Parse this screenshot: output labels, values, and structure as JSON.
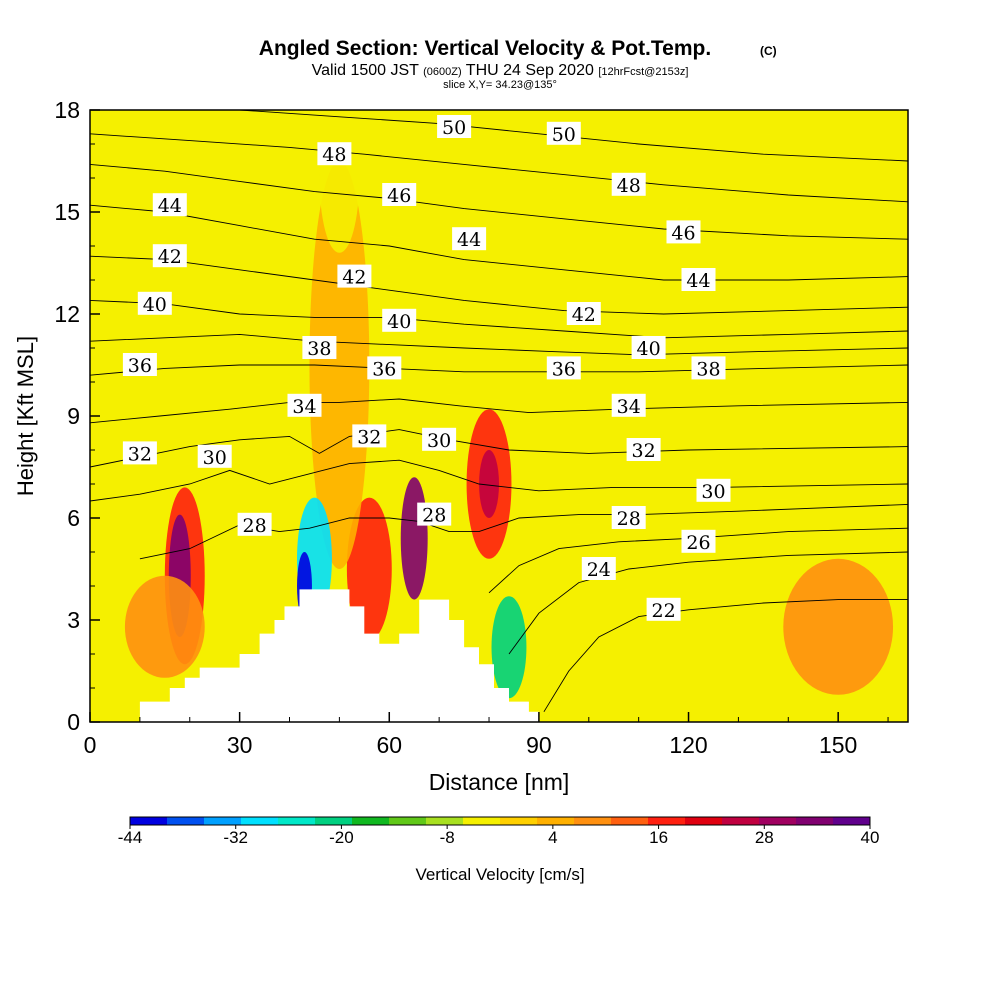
{
  "header": {
    "title": "Angled Section: Vertical Velocity & Pot.Temp.",
    "title_unit": "(C)",
    "subtitle_prefix": "Valid 1500 JST",
    "subtitle_utc": "(0600Z)",
    "subtitle_date": "THU 24 Sep 2020",
    "subtitle_run": "[12hrFcst@2153z]",
    "slice": "slice X,Y= 34.23@135°"
  },
  "colors": {
    "background_field": "#f5f000",
    "terrain": "#ffffff",
    "contour": "#000000"
  },
  "chart_data": {
    "type": "heatmap",
    "xlabel": "Distance [nm]",
    "ylabel": "Height [Kft MSL]",
    "xlim": [
      0,
      164
    ],
    "ylim": [
      0,
      18
    ],
    "x_ticks": [
      0,
      30,
      60,
      90,
      120,
      150
    ],
    "y_ticks": [
      0,
      3,
      6,
      9,
      12,
      15,
      18
    ],
    "grid": false,
    "colorbar": {
      "label": "Vertical Velocity [cm/s]",
      "tick_labels": [
        "-44",
        "-32",
        "-20",
        "-8",
        "4",
        "16",
        "28",
        "40"
      ],
      "colors": [
        "#0000e0",
        "#0050f0",
        "#00a0ff",
        "#00e0ff",
        "#00e8c8",
        "#00d080",
        "#10b820",
        "#60c818",
        "#a8e020",
        "#f5f000",
        "#ffd000",
        "#ffb000",
        "#ff9010",
        "#ff6010",
        "#ff2010",
        "#e00010",
        "#c00040",
        "#a00060",
        "#800070",
        "#60008c"
      ]
    },
    "theta_contour_labels": [
      {
        "text": "50",
        "x": 73,
        "z": 17.5
      },
      {
        "text": "50",
        "x": 95,
        "z": 17.3
      },
      {
        "text": "48",
        "x": 49,
        "z": 16.7
      },
      {
        "text": "48",
        "x": 108,
        "z": 15.8
      },
      {
        "text": "46",
        "x": 62,
        "z": 15.5
      },
      {
        "text": "46",
        "x": 119,
        "z": 14.4
      },
      {
        "text": "44",
        "x": 16,
        "z": 15.2
      },
      {
        "text": "44",
        "x": 76,
        "z": 14.2
      },
      {
        "text": "44",
        "x": 122,
        "z": 13.0
      },
      {
        "text": "42",
        "x": 16,
        "z": 13.7
      },
      {
        "text": "42",
        "x": 53,
        "z": 13.1
      },
      {
        "text": "42",
        "x": 99,
        "z": 12.0
      },
      {
        "text": "40",
        "x": 13,
        "z": 12.3
      },
      {
        "text": "40",
        "x": 62,
        "z": 11.8
      },
      {
        "text": "40",
        "x": 112,
        "z": 11.0
      },
      {
        "text": "38",
        "x": 46,
        "z": 11.0
      },
      {
        "text": "38",
        "x": 124,
        "z": 10.4
      },
      {
        "text": "36",
        "x": 10,
        "z": 10.5
      },
      {
        "text": "36",
        "x": 59,
        "z": 10.4
      },
      {
        "text": "36",
        "x": 95,
        "z": 10.4
      },
      {
        "text": "34",
        "x": 43,
        "z": 9.3
      },
      {
        "text": "34",
        "x": 108,
        "z": 9.3
      },
      {
        "text": "32",
        "x": 10,
        "z": 7.9
      },
      {
        "text": "32",
        "x": 56,
        "z": 8.4
      },
      {
        "text": "32",
        "x": 111,
        "z": 8.0
      },
      {
        "text": "30",
        "x": 25,
        "z": 7.8
      },
      {
        "text": "30",
        "x": 70,
        "z": 8.3
      },
      {
        "text": "30",
        "x": 125,
        "z": 6.8
      },
      {
        "text": "28",
        "x": 33,
        "z": 5.8
      },
      {
        "text": "28",
        "x": 69,
        "z": 6.1
      },
      {
        "text": "28",
        "x": 108,
        "z": 6.0
      },
      {
        "text": "26",
        "x": 122,
        "z": 5.3
      },
      {
        "text": "24",
        "x": 102,
        "z": 4.5
      },
      {
        "text": "22",
        "x": 115,
        "z": 3.3
      }
    ],
    "theta_contours": [
      {
        "level": 22,
        "points": [
          [
            91,
            0.3
          ],
          [
            96,
            1.5
          ],
          [
            102,
            2.5
          ],
          [
            110,
            3.1
          ],
          [
            120,
            3.3
          ],
          [
            135,
            3.5
          ],
          [
            150,
            3.6
          ],
          [
            164,
            3.6
          ]
        ]
      },
      {
        "level": 24,
        "points": [
          [
            84,
            2.0
          ],
          [
            90,
            3.2
          ],
          [
            98,
            4.1
          ],
          [
            108,
            4.5
          ],
          [
            120,
            4.7
          ],
          [
            140,
            4.9
          ],
          [
            164,
            5.0
          ]
        ]
      },
      {
        "level": 26,
        "points": [
          [
            80,
            3.8
          ],
          [
            86,
            4.6
          ],
          [
            94,
            5.1
          ],
          [
            106,
            5.3
          ],
          [
            120,
            5.4
          ],
          [
            140,
            5.6
          ],
          [
            164,
            5.7
          ]
        ]
      },
      {
        "level": 28,
        "points": [
          [
            10,
            4.8
          ],
          [
            20,
            5.1
          ],
          [
            30,
            5.8
          ],
          [
            38,
            5.6
          ],
          [
            44,
            5.7
          ],
          [
            52,
            6.0
          ],
          [
            60,
            6.0
          ],
          [
            66,
            5.9
          ],
          [
            72,
            5.6
          ],
          [
            78,
            5.6
          ],
          [
            86,
            6.0
          ],
          [
            98,
            6.1
          ],
          [
            110,
            6.1
          ],
          [
            130,
            6.2
          ],
          [
            164,
            6.4
          ]
        ]
      },
      {
        "level": 30,
        "points": [
          [
            0,
            6.5
          ],
          [
            10,
            6.7
          ],
          [
            20,
            7.0
          ],
          [
            28,
            7.4
          ],
          [
            36,
            7.0
          ],
          [
            44,
            7.3
          ],
          [
            52,
            7.6
          ],
          [
            62,
            7.7
          ],
          [
            70,
            7.4
          ],
          [
            78,
            7.0
          ],
          [
            90,
            6.8
          ],
          [
            105,
            6.9
          ],
          [
            125,
            6.9
          ],
          [
            164,
            7.0
          ]
        ]
      },
      {
        "level": 32,
        "points": [
          [
            0,
            7.5
          ],
          [
            10,
            7.8
          ],
          [
            20,
            8.1
          ],
          [
            30,
            8.3
          ],
          [
            40,
            8.4
          ],
          [
            46,
            7.9
          ],
          [
            52,
            8.4
          ],
          [
            62,
            8.6
          ],
          [
            72,
            8.3
          ],
          [
            84,
            8.0
          ],
          [
            100,
            7.9
          ],
          [
            120,
            8.0
          ],
          [
            164,
            8.1
          ]
        ]
      },
      {
        "level": 34,
        "points": [
          [
            0,
            8.8
          ],
          [
            14,
            9.0
          ],
          [
            28,
            9.2
          ],
          [
            40,
            9.4
          ],
          [
            50,
            9.4
          ],
          [
            62,
            9.5
          ],
          [
            74,
            9.3
          ],
          [
            88,
            9.1
          ],
          [
            106,
            9.2
          ],
          [
            130,
            9.3
          ],
          [
            164,
            9.4
          ]
        ]
      },
      {
        "level": 36,
        "points": [
          [
            0,
            10.2
          ],
          [
            15,
            10.4
          ],
          [
            30,
            10.5
          ],
          [
            45,
            10.5
          ],
          [
            60,
            10.4
          ],
          [
            75,
            10.3
          ],
          [
            92,
            10.3
          ],
          [
            110,
            10.3
          ],
          [
            135,
            10.4
          ],
          [
            164,
            10.5
          ]
        ]
      },
      {
        "level": 38,
        "points": [
          [
            0,
            11.2
          ],
          [
            15,
            11.3
          ],
          [
            30,
            11.4
          ],
          [
            45,
            11.2
          ],
          [
            60,
            11.1
          ],
          [
            75,
            11.0
          ],
          [
            92,
            10.9
          ],
          [
            110,
            10.8
          ],
          [
            135,
            10.9
          ],
          [
            164,
            11.0
          ]
        ]
      },
      {
        "level": 40,
        "points": [
          [
            0,
            12.4
          ],
          [
            15,
            12.3
          ],
          [
            30,
            12.0
          ],
          [
            45,
            11.9
          ],
          [
            60,
            11.9
          ],
          [
            75,
            11.7
          ],
          [
            95,
            11.5
          ],
          [
            115,
            11.3
          ],
          [
            140,
            11.4
          ],
          [
            164,
            11.5
          ]
        ]
      },
      {
        "level": 42,
        "points": [
          [
            0,
            13.7
          ],
          [
            15,
            13.6
          ],
          [
            30,
            13.3
          ],
          [
            45,
            13.0
          ],
          [
            60,
            12.7
          ],
          [
            75,
            12.4
          ],
          [
            95,
            12.1
          ],
          [
            115,
            12.0
          ],
          [
            140,
            12.1
          ],
          [
            164,
            12.2
          ]
        ]
      },
      {
        "level": 44,
        "points": [
          [
            0,
            15.2
          ],
          [
            15,
            15.0
          ],
          [
            30,
            14.6
          ],
          [
            45,
            14.2
          ],
          [
            60,
            14.0
          ],
          [
            75,
            13.6
          ],
          [
            95,
            13.3
          ],
          [
            115,
            13.0
          ],
          [
            140,
            13.0
          ],
          [
            164,
            13.1
          ]
        ]
      },
      {
        "level": 46,
        "points": [
          [
            0,
            16.4
          ],
          [
            15,
            16.2
          ],
          [
            30,
            15.9
          ],
          [
            45,
            15.6
          ],
          [
            60,
            15.4
          ],
          [
            75,
            15.1
          ],
          [
            95,
            14.8
          ],
          [
            115,
            14.5
          ],
          [
            140,
            14.3
          ],
          [
            164,
            14.2
          ]
        ]
      },
      {
        "level": 48,
        "points": [
          [
            0,
            17.3
          ],
          [
            20,
            17.1
          ],
          [
            40,
            16.9
          ],
          [
            55,
            16.7
          ],
          [
            75,
            16.4
          ],
          [
            95,
            16.1
          ],
          [
            115,
            15.8
          ],
          [
            140,
            15.5
          ],
          [
            164,
            15.3
          ]
        ]
      },
      {
        "level": 50,
        "points": [
          [
            30,
            18.0
          ],
          [
            50,
            17.8
          ],
          [
            70,
            17.6
          ],
          [
            90,
            17.3
          ],
          [
            110,
            17.0
          ],
          [
            135,
            16.7
          ],
          [
            164,
            16.5
          ]
        ]
      }
    ],
    "velocity_cells": [
      {
        "x": 19,
        "z": 4.3,
        "rx": 4,
        "rz": 2.6,
        "w": 18
      },
      {
        "x": 18,
        "z": 4.3,
        "rx": 2.2,
        "rz": 1.8,
        "w": 34
      },
      {
        "x": 56,
        "z": 4.5,
        "rx": 4.5,
        "rz": 2.1,
        "w": 16
      },
      {
        "x": 65,
        "z": 5.4,
        "rx": 2.7,
        "rz": 1.8,
        "w": 32
      },
      {
        "x": 80,
        "z": 7.0,
        "rx": 4.5,
        "rz": 2.2,
        "w": 18
      },
      {
        "x": 80,
        "z": 7.0,
        "rx": 2,
        "rz": 1.0,
        "w": 24
      },
      {
        "x": 15,
        "z": 2.8,
        "rx": 8,
        "rz": 1.5,
        "w": 10
      },
      {
        "x": 50,
        "z": 10.5,
        "rx": 6,
        "rz": 6,
        "w": 6
      },
      {
        "x": 150,
        "z": 2.8,
        "rx": 11,
        "rz": 2,
        "w": 10
      },
      {
        "x": 45,
        "z": 4.8,
        "rx": 3.5,
        "rz": 1.8,
        "w": -28
      },
      {
        "x": 43,
        "z": 4.0,
        "rx": 1.5,
        "rz": 1.0,
        "w": -44
      },
      {
        "x": 84,
        "z": 2.2,
        "rx": 3.5,
        "rz": 1.5,
        "w": -20
      },
      {
        "x": 50,
        "z": 16.0,
        "rx": 4,
        "rz": 2.2,
        "w": -6
      },
      {
        "x": 88,
        "z": 16.0,
        "rx": 5,
        "rz": 2.0,
        "w": -6
      },
      {
        "x": 12,
        "z": 8.0,
        "rx": 4,
        "rz": 1.0,
        "w": -6
      }
    ],
    "terrain_nm_kft": [
      [
        0,
        0
      ],
      [
        10,
        0
      ],
      [
        10,
        0.6
      ],
      [
        16,
        0.6
      ],
      [
        16,
        1.0
      ],
      [
        19,
        1.0
      ],
      [
        19,
        1.3
      ],
      [
        22,
        1.3
      ],
      [
        22,
        1.6
      ],
      [
        30,
        1.6
      ],
      [
        30,
        2.0
      ],
      [
        34,
        2.0
      ],
      [
        34,
        2.6
      ],
      [
        37,
        2.6
      ],
      [
        37,
        3.0
      ],
      [
        39,
        3.0
      ],
      [
        39,
        3.4
      ],
      [
        42,
        3.4
      ],
      [
        42,
        3.9
      ],
      [
        52,
        3.9
      ],
      [
        52,
        3.4
      ],
      [
        55,
        3.4
      ],
      [
        55,
        2.6
      ],
      [
        58,
        2.6
      ],
      [
        58,
        2.3
      ],
      [
        62,
        2.3
      ],
      [
        62,
        2.6
      ],
      [
        66,
        2.6
      ],
      [
        66,
        3.6
      ],
      [
        72,
        3.6
      ],
      [
        72,
        3.0
      ],
      [
        75,
        3.0
      ],
      [
        75,
        2.2
      ],
      [
        78,
        2.2
      ],
      [
        78,
        1.7
      ],
      [
        81,
        1.7
      ],
      [
        81,
        1.0
      ],
      [
        84,
        1.0
      ],
      [
        84,
        0.6
      ],
      [
        88,
        0.6
      ],
      [
        88,
        0.3
      ],
      [
        90,
        0.3
      ],
      [
        90,
        0
      ],
      [
        164,
        0
      ]
    ]
  }
}
